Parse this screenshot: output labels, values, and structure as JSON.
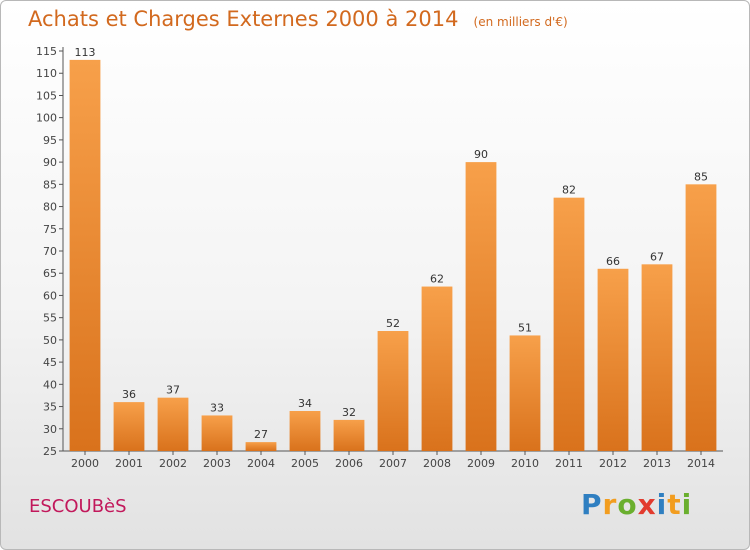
{
  "chart_data": {
    "type": "bar",
    "title": "Achats et Charges Externes 2000 à 2014",
    "subtitle": "(en milliers d'€)",
    "categories": [
      "2000",
      "2001",
      "2002",
      "2003",
      "2004",
      "2005",
      "2006",
      "2007",
      "2008",
      "2009",
      "2010",
      "2011",
      "2012",
      "2013",
      "2014"
    ],
    "values": [
      113,
      36,
      37,
      33,
      27,
      34,
      32,
      52,
      62,
      90,
      51,
      82,
      66,
      67,
      85
    ],
    "ylim": [
      25,
      115
    ],
    "yticks": [
      25,
      30,
      35,
      40,
      45,
      50,
      55,
      60,
      65,
      70,
      75,
      80,
      85,
      90,
      95,
      100,
      105,
      110,
      115
    ],
    "grid": false,
    "bar_color": "#f0922f"
  },
  "commune": "ESCOUBèS",
  "logo": {
    "letters": [
      "P",
      "r",
      "o",
      "x",
      "i",
      "t",
      "i"
    ],
    "colors": [
      "#2f7fc1",
      "#f29d1f",
      "#6aaf2e",
      "#e23b2e",
      "#2f7fc1",
      "#f29d1f",
      "#6aaf2e"
    ]
  }
}
